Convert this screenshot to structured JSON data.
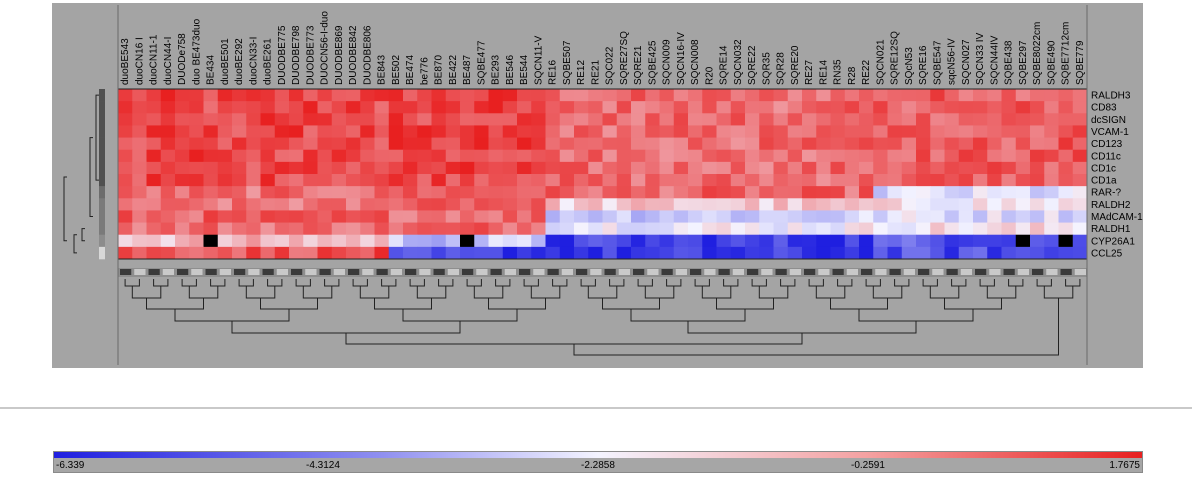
{
  "chart_data": {
    "type": "heatmap",
    "title": "",
    "columns": [
      "duoBE543",
      "duoCN16 I",
      "duoCN11-1",
      "duoCN44-I",
      "DUODe758",
      "duo BE473duo",
      "BE434",
      "duoBE501",
      "duoBE292",
      "duoCN33-I",
      "duoBE261",
      "DUODBE775",
      "DUODBE798",
      "DUODBE773",
      "DUOCN56-I-duo",
      "DUODBE869",
      "DUODBE842",
      "DUODBE806",
      "BE843",
      "BE502",
      "BE474",
      "be776",
      "BE870",
      "BE422",
      "BE487",
      "SQBE477",
      "BE293",
      "BE546",
      "BE544",
      "SQCN11-V",
      "RE16",
      "SQBE507",
      "RE12",
      "RE21",
      "SQC022",
      "SQRE27SQ",
      "SQRE21",
      "SQBE425",
      "SQCN009",
      "SQCN16-IV",
      "SQCN008",
      "R20",
      "SQRE14",
      "SQCN032",
      "SQRE22",
      "SQR35",
      "SQR28",
      "SQRE20",
      "RE27",
      "RE14",
      "RN35",
      "R28",
      "RE22",
      "SQCN021",
      "SQRE12SQ",
      "SQcN53",
      "SQRE16",
      "SQBE547",
      "sqcN56-IV",
      "SQCN027",
      "SQCN33 IV",
      "SQCN44IV",
      "SQBE438",
      "SQBE297",
      "SQBE8022cm",
      "SQBE490",
      "SQBE7712cm",
      "SQBE779"
    ],
    "rows": [
      "RALDH3",
      "CD83",
      "dcSIGN",
      "VCAM-1",
      "CD123",
      "CD11c",
      "CD1c",
      "CD1a",
      "RAR-?",
      "RALDH2",
      "MAdCAM-1",
      "RALDH1",
      "CYP26A1",
      "CCL25"
    ],
    "legend": {
      "min": -6.339,
      "max": 1.7675,
      "ticks": [
        "-6.339",
        "-4.3124",
        "-2.2858",
        "-0.2591",
        "1.7675"
      ],
      "colors": {
        "low": "#1f1fe0",
        "mid": "#f4f4ff",
        "high": "#e82020",
        "missing": "#000000"
      }
    },
    "grid": false
  }
}
